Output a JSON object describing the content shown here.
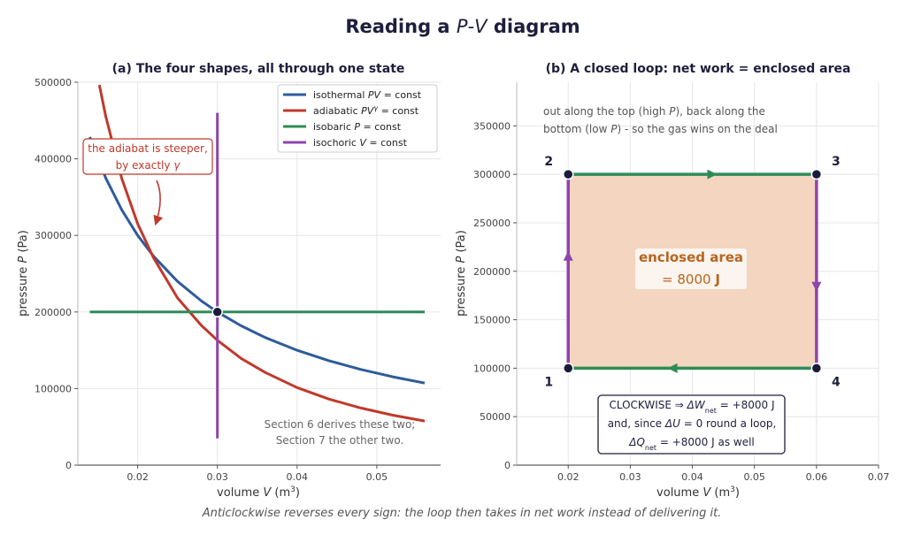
{
  "figure": {
    "title_prefix": "Reading a ",
    "title_P": "P",
    "title_dash": "-",
    "title_V": "V",
    "title_suffix": " diagram",
    "footer": "Anticlockwise reverses every sign: the loop then takes in net work instead of delivering it."
  },
  "chart_data": [
    {
      "type": "line",
      "title": "(a) The four shapes, all through one state",
      "xlabel": "volume  V  (m³)",
      "ylabel": "pressure  P  (Pa)",
      "xlim": [
        0.0125,
        0.058
      ],
      "ylim": [
        0,
        500000
      ],
      "x_ticks": [
        0.02,
        0.03,
        0.04,
        0.05
      ],
      "x_tick_labels": [
        "0.02",
        "0.03",
        "0.04",
        "0.05"
      ],
      "y_ticks": [
        0,
        100000,
        200000,
        300000,
        400000,
        500000
      ],
      "y_tick_labels": [
        "0",
        "100000",
        "200000",
        "300000",
        "400000",
        "500000"
      ],
      "grid": true,
      "legend_position": "top-right",
      "colors": {
        "isothermal": "#2e5c9a",
        "adiabatic": "#c0392b",
        "isobaric": "#2e8b57",
        "isochoric": "#8e44ad",
        "point": "#1a1a3a"
      },
      "series": [
        {
          "key": "isothermal",
          "name": "isothermal  PV = const",
          "color": "#2e5c9a",
          "x": [
            0.014,
            0.016,
            0.018,
            0.02,
            0.022,
            0.025,
            0.028,
            0.03,
            0.033,
            0.036,
            0.04,
            0.044,
            0.048,
            0.052,
            0.056
          ],
          "y": [
            428571,
            375000,
            333333,
            300000,
            272727,
            240000,
            214286,
            200000,
            181818,
            166667,
            150000,
            136364,
            125000,
            115385,
            107143
          ]
        },
        {
          "key": "adiabatic",
          "name": "adiabatic  PV^γ = const",
          "color": "#c0392b",
          "x": [
            0.0152,
            0.016,
            0.018,
            0.02,
            0.022,
            0.025,
            0.028,
            0.03,
            0.033,
            0.036,
            0.04,
            0.044,
            0.048,
            0.052,
            0.056
          ],
          "y": [
            496500,
            455600,
            374500,
            315300,
            270600,
            218400,
            182300,
            163000,
            139300,
            121000,
            101300,
            86300,
            74600,
            65200,
            57600
          ]
        },
        {
          "key": "isobaric",
          "name": "isobaric  P = const",
          "color": "#2e8b57",
          "x": [
            0.014,
            0.056
          ],
          "y": [
            200000,
            200000
          ]
        },
        {
          "key": "isochoric",
          "name": "isochoric  V = const",
          "color": "#8e44ad",
          "x": [
            0.03,
            0.03
          ],
          "y": [
            35000,
            460000
          ]
        }
      ],
      "point": {
        "x": 0.03,
        "y": 200000
      },
      "annotations": {
        "steeper_line1": "the adiabat is steeper,",
        "steeper_line2_prefix": "by exactly ",
        "steeper_line2_symbol": "γ",
        "note_line1": "Section 6 derives these two;",
        "note_line2": "Section 7 the other two."
      },
      "legend_parts": [
        {
          "text": "isothermal  ",
          "math": "PV",
          "tail": " =  const"
        },
        {
          "text": "adiabatic  ",
          "math": "PV",
          "sup": "γ",
          "tail": " =  const"
        },
        {
          "text": "isobaric  ",
          "math": "P",
          "tail": " =  const"
        },
        {
          "text": "isochoric  ",
          "math": "V",
          "tail": " =  const"
        }
      ]
    },
    {
      "type": "line",
      "title": "(b) A closed loop: net work = enclosed area",
      "xlabel": "volume  V  (m³)",
      "ylabel": "pressure  P  (Pa)",
      "xlim": [
        0.0117,
        0.07
      ],
      "ylim": [
        0,
        395000
      ],
      "x_ticks": [
        0.02,
        0.03,
        0.04,
        0.05,
        0.06,
        0.07
      ],
      "x_tick_labels": [
        "0.02",
        "0.03",
        "0.04",
        "0.05",
        "0.06",
        "0.07"
      ],
      "y_ticks": [
        0,
        50000,
        100000,
        150000,
        200000,
        250000,
        300000,
        350000
      ],
      "y_tick_labels": [
        "0",
        "50000",
        "100000",
        "150000",
        "200000",
        "250000",
        "300000",
        "350000"
      ],
      "grid": true,
      "colors": {
        "fill": "#f3d5c0",
        "horizontal": "#2e8b57",
        "vertical": "#8e44ad",
        "area_text": "#b8651f",
        "point": "#1a1a3a"
      },
      "vertices": [
        {
          "label": "1",
          "x": 0.02,
          "y": 100000
        },
        {
          "label": "2",
          "x": 0.02,
          "y": 300000
        },
        {
          "label": "3",
          "x": 0.06,
          "y": 300000
        },
        {
          "label": "4",
          "x": 0.06,
          "y": 100000
        }
      ],
      "enclosed_area_J": 8000,
      "annotations": {
        "top_line1_a": "out along the top (high ",
        "top_line1_P": "P",
        "top_line1_b": "), back along the",
        "top_line2_a": "bottom (low ",
        "top_line2_P": "P",
        "top_line2_b": ") - so the gas wins on the deal",
        "area_title": "enclosed area",
        "area_value": "= 8000",
        "area_unit": "J",
        "box_line1_a": "CLOCKWISE  ⇒  ",
        "box_line1_b": "ΔW",
        "box_line1_sub": "net",
        "box_line1_c": " = +8000 J",
        "box_line2_a": "and, since ",
        "box_line2_b": "ΔU",
        "box_line2_c": " = 0 round a loop,",
        "box_line3_a": "ΔQ",
        "box_line3_sub": "net",
        "box_line3_b": " = +8000 J as well"
      }
    }
  ]
}
